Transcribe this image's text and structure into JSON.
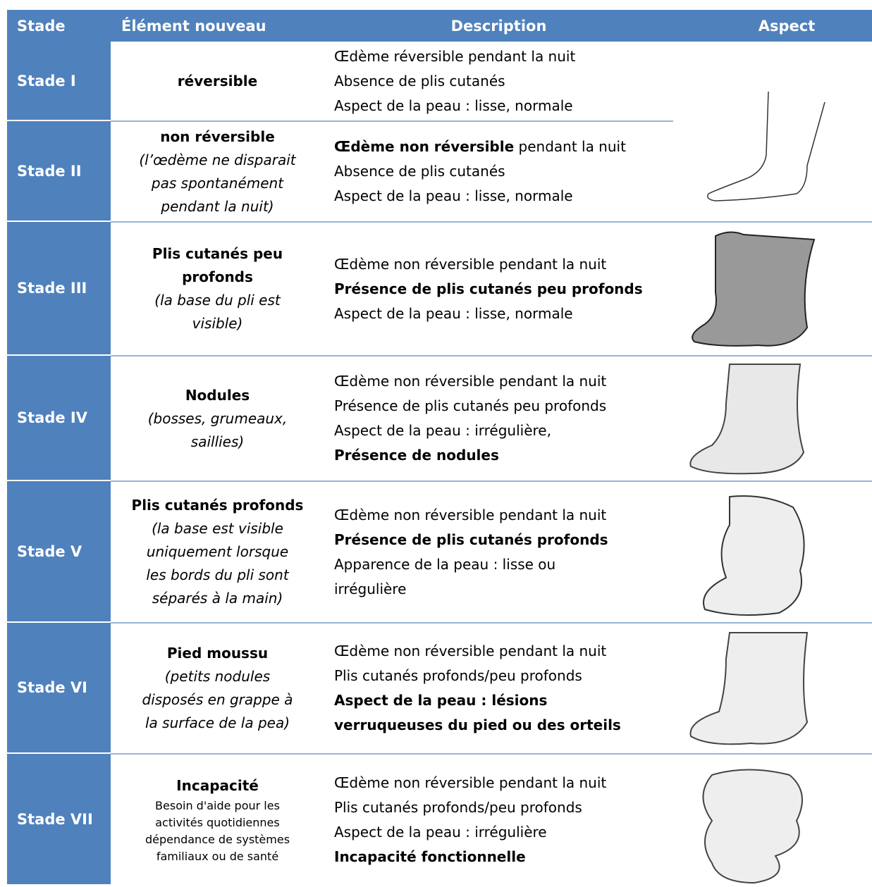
{
  "header": {
    "columns": [
      "Stade",
      "Élément nouveau",
      "Description",
      "Aspect"
    ]
  },
  "rows": [
    {
      "stage": "Stade I",
      "element": {
        "title": [
          "réversible"
        ],
        "subtitle": [],
        "note": []
      },
      "description": [
        [
          {
            "text": "Œdème réversible pendant la nuit",
            "bold": false
          }
        ],
        [
          {
            "text": "Absence de plis cutanés",
            "bold": false
          }
        ],
        [
          {
            "text": "Aspect de la peau : lisse, normale",
            "bold": false
          }
        ]
      ]
    },
    {
      "stage": "Stade II",
      "element": {
        "title": [
          "non réversible"
        ],
        "subtitle": [
          "(l’œdème ne disparait",
          "pas spontanément",
          "pendant la nuit)"
        ],
        "note": []
      },
      "description": [
        [
          {
            "text": "Œdème non réversible",
            "bold": true
          },
          {
            "text": " pendant la nuit",
            "bold": false
          }
        ],
        [
          {
            "text": "Absence de plis cutanés",
            "bold": false
          }
        ],
        [
          {
            "text": "Aspect de la peau : lisse, normale",
            "bold": false
          }
        ]
      ]
    },
    {
      "stage": "Stade III",
      "element": {
        "title": [
          "Plis cutanés peu",
          "profonds"
        ],
        "subtitle": [
          "(la base du pli est",
          "visible)"
        ],
        "note": []
      },
      "description": [
        [
          {
            "text": "Œdème non réversible pendant la nuit",
            "bold": false
          }
        ],
        [
          {
            "text": "Présence de plis cutanés peu profonds",
            "bold": true
          }
        ],
        [
          {
            "text": "Aspect de la peau : lisse, normale",
            "bold": false
          }
        ]
      ]
    },
    {
      "stage": "Stade IV",
      "element": {
        "title": [
          "Nodules"
        ],
        "subtitle": [
          "(bosses, grumeaux,",
          "saillies)"
        ],
        "note": []
      },
      "description": [
        [
          {
            "text": "Œdème non réversible pendant la nuit",
            "bold": false
          }
        ],
        [
          {
            "text": "Présence de plis cutanés peu profonds",
            "bold": false
          }
        ],
        [
          {
            "text": "Aspect de la peau : irrégulière,",
            "bold": false
          }
        ],
        [
          {
            "text": "Présence de nodules",
            "bold": true
          }
        ]
      ]
    },
    {
      "stage": "Stade V",
      "element": {
        "title": [
          "Plis cutanés profonds"
        ],
        "subtitle": [
          "(la base est visible",
          "uniquement lorsque",
          "les bords du pli sont",
          "séparés à la main)"
        ],
        "note": []
      },
      "description": [
        [
          {
            "text": "Œdème non réversible pendant la nuit",
            "bold": false
          }
        ],
        [
          {
            "text": "Présence de plis cutanés profonds",
            "bold": true
          }
        ],
        [
          {
            "text": "Apparence de la peau : lisse ou",
            "bold": false
          }
        ],
        [
          {
            "text": "irrégulière",
            "bold": false
          }
        ]
      ]
    },
    {
      "stage": "Stade VI",
      "element": {
        "title": [
          "Pied moussu"
        ],
        "subtitle": [
          "(petits nodules",
          "disposés en grappe à",
          "la surface de la pea)"
        ],
        "note": []
      },
      "description": [
        [
          {
            "text": "Œdème non réversible pendant la nuit",
            "bold": false
          }
        ],
        [
          {
            "text": "Plis cutanés profonds/peu profonds",
            "bold": false
          }
        ],
        [
          {
            "text": "Aspect de la peau : lésions",
            "bold": true
          }
        ],
        [
          {
            "text": "verruqueuses du pied ou des orteils",
            "bold": true
          }
        ]
      ]
    },
    {
      "stage": "Stade VII",
      "element": {
        "title": [
          "Incapacité"
        ],
        "subtitle": [],
        "note": [
          "Besoin d'aide pour les",
          "activités quotidiennes",
          "dépendance de systèmes",
          "familiaux ou de santé"
        ]
      },
      "description": [
        [
          {
            "text": "Œdème non réversible pendant la nuit",
            "bold": false
          }
        ],
        [
          {
            "text": "Plis cutanés profonds/peu profonds",
            "bold": false
          }
        ],
        [
          {
            "text": "Aspect de la peau : irrégulière",
            "bold": false
          }
        ],
        [
          {
            "text": "Incapacité fonctionnelle",
            "bold": true
          }
        ]
      ]
    }
  ]
}
